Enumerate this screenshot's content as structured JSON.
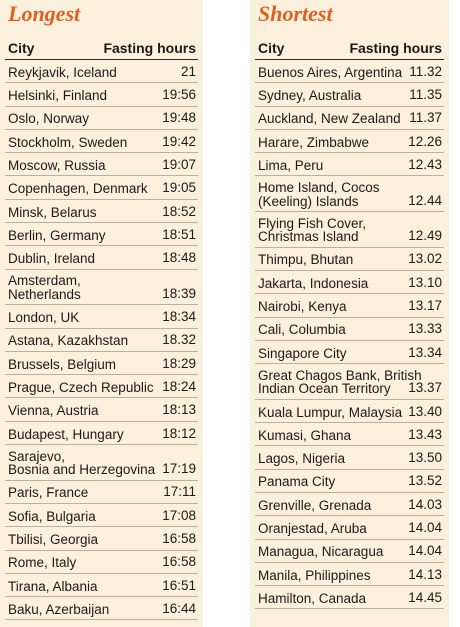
{
  "longest": {
    "title": "Longest",
    "header": {
      "city": "City",
      "hours": "Fasting hours"
    },
    "rows": [
      {
        "city": "Reykjavik, Iceland",
        "hours": "21"
      },
      {
        "city": "Helsinki, Finland",
        "hours": "19:56"
      },
      {
        "city": "Oslo, Norway",
        "hours": "19:48"
      },
      {
        "city": "Stockholm, Sweden",
        "hours": "19:42"
      },
      {
        "city": "Moscow, Russia",
        "hours": "19:07"
      },
      {
        "city": "Copenhagen, Denmark",
        "hours": "19:05"
      },
      {
        "city": "Minsk, Belarus",
        "hours": "18:52"
      },
      {
        "city": "Berlin, Germany",
        "hours": "18:51"
      },
      {
        "city": "Dublin, Ireland",
        "hours": "18:48"
      },
      {
        "city": "Amsterdam,\nNetherlands",
        "hours": "18:39"
      },
      {
        "city": "London, UK",
        "hours": "18:34"
      },
      {
        "city": "Astana, Kazakhstan",
        "hours": "18.32"
      },
      {
        "city": "Brussels, Belgium",
        "hours": "18:29"
      },
      {
        "city": "Prague, Czech Republic",
        "hours": "18:24"
      },
      {
        "city": "Vienna, Austria",
        "hours": "18:13"
      },
      {
        "city": "Budapest, Hungary",
        "hours": "18:12"
      },
      {
        "city": "Sarajevo,\nBosnia and Herzegovina",
        "hours": "17:19"
      },
      {
        "city": "Paris, France",
        "hours": "17:11"
      },
      {
        "city": "Sofia, Bulgaria",
        "hours": "17:08"
      },
      {
        "city": "Tbilisi, Georgia",
        "hours": "16:58"
      },
      {
        "city": "Rome, Italy",
        "hours": "16:58"
      },
      {
        "city": "Tirana, Albania",
        "hours": "16:51"
      },
      {
        "city": "Baku, Azerbaijan",
        "hours": "16:44"
      }
    ]
  },
  "shortest": {
    "title": "Shortest",
    "header": {
      "city": "City",
      "hours": "Fasting hours"
    },
    "rows": [
      {
        "city": "Buenos Aires, Argentina",
        "hours": "11.32"
      },
      {
        "city": "Sydney, Australia",
        "hours": "11.35"
      },
      {
        "city": "Auckland, New Zealand",
        "hours": "11.37"
      },
      {
        "city": "Harare, Zimbabwe",
        "hours": "12.26"
      },
      {
        "city": "Lima, Peru",
        "hours": "12.43"
      },
      {
        "city": "Home Island, Cocos\n(Keeling) Islands",
        "hours": "12.44"
      },
      {
        "city": "Flying Fish Cover,\nChristmas Island",
        "hours": "12.49"
      },
      {
        "city": "Thimpu, Bhutan",
        "hours": "13.02"
      },
      {
        "city": "Jakarta, Indonesia",
        "hours": "13.10"
      },
      {
        "city": "Nairobi, Kenya",
        "hours": "13.17"
      },
      {
        "city": "Cali, Columbia",
        "hours": "13.33"
      },
      {
        "city": "Singapore City",
        "hours": "13.34"
      },
      {
        "city": "Great Chagos Bank, British\nIndian Ocean Territory",
        "hours": "13.37"
      },
      {
        "city": "Kuala Lumpur, Malaysia",
        "hours": "13.40"
      },
      {
        "city": "Kumasi, Ghana",
        "hours": "13.43"
      },
      {
        "city": "Lagos, Nigeria",
        "hours": "13.50"
      },
      {
        "city": "Panama City",
        "hours": "13.52"
      },
      {
        "city": "Grenville, Grenada",
        "hours": "14.03"
      },
      {
        "city": "Oranjestad, Aruba",
        "hours": "14.04"
      },
      {
        "city": "Managua, Nicaragua",
        "hours": "14.04"
      },
      {
        "city": "Manila, Philippines",
        "hours": "14.13"
      },
      {
        "city": "Hamilton, Canada",
        "hours": "14.45"
      }
    ]
  }
}
